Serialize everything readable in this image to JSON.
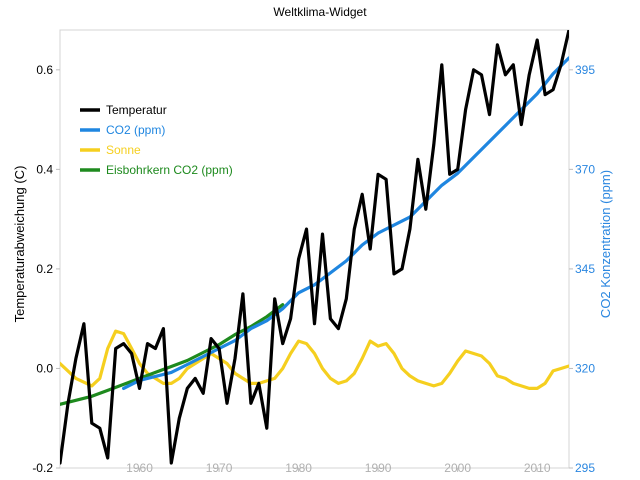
{
  "chart_data": {
    "type": "line",
    "title": "Weltklima-Widget",
    "ylabel_left": "Temperaturabweichung (C)",
    "ylabel_right": "CO2 Konzentration (ppm)",
    "xlim": [
      1950,
      2014
    ],
    "ylim_left": [
      -0.2,
      0.68
    ],
    "ylim_right": [
      295,
      405
    ],
    "x_ticks": [
      "1960",
      "1970",
      "1980",
      "1990",
      "2000",
      "2010"
    ],
    "y_left_ticks": [
      "-0.2",
      "0.0",
      "0.2",
      "0.4",
      "0.6"
    ],
    "y_right_ticks": [
      "295",
      "320",
      "345",
      "370",
      "395"
    ],
    "grid": false,
    "legend_position": "top-left",
    "colors": {
      "temperature": "#000000",
      "co2": "#1f86e0",
      "sun": "#f5cf1f",
      "icecore": "#1e8a1e",
      "right_axis": "#2b87e0",
      "x_axis_ticks": "#b0b0b0"
    },
    "series": [
      {
        "name": "Temperatur",
        "axis": "left",
        "x": [
          1950,
          1951,
          1952,
          1953,
          1954,
          1955,
          1956,
          1957,
          1958,
          1959,
          1960,
          1961,
          1962,
          1963,
          1964,
          1965,
          1966,
          1967,
          1968,
          1969,
          1970,
          1971,
          1972,
          1973,
          1974,
          1975,
          1976,
          1977,
          1978,
          1979,
          1980,
          1981,
          1982,
          1983,
          1984,
          1985,
          1986,
          1987,
          1988,
          1989,
          1990,
          1991,
          1992,
          1993,
          1994,
          1995,
          1996,
          1997,
          1998,
          1999,
          2000,
          2001,
          2002,
          2003,
          2004,
          2005,
          2006,
          2007,
          2008,
          2009,
          2010,
          2011,
          2012,
          2013,
          2014
        ],
        "values": [
          -0.19,
          -0.07,
          0.02,
          0.09,
          -0.11,
          -0.12,
          -0.18,
          0.04,
          0.05,
          0.03,
          -0.04,
          0.05,
          0.04,
          0.08,
          -0.19,
          -0.1,
          -0.04,
          -0.02,
          -0.05,
          0.06,
          0.04,
          -0.07,
          0.02,
          0.15,
          -0.07,
          -0.03,
          -0.12,
          0.14,
          0.05,
          0.1,
          0.22,
          0.28,
          0.09,
          0.27,
          0.1,
          0.08,
          0.14,
          0.28,
          0.35,
          0.24,
          0.39,
          0.38,
          0.19,
          0.2,
          0.28,
          0.42,
          0.32,
          0.45,
          0.61,
          0.39,
          0.4,
          0.52,
          0.6,
          0.59,
          0.51,
          0.65,
          0.59,
          0.61,
          0.49,
          0.59,
          0.66,
          0.55,
          0.56,
          0.61,
          0.68
        ]
      },
      {
        "name": "CO2 (ppm)",
        "axis": "right",
        "x": [
          1958,
          1960,
          1962,
          1964,
          1966,
          1968,
          1970,
          1972,
          1974,
          1976,
          1978,
          1980,
          1982,
          1984,
          1986,
          1988,
          1990,
          1992,
          1994,
          1996,
          1998,
          2000,
          2002,
          2004,
          2006,
          2008,
          2010,
          2012,
          2014
        ],
        "values": [
          315,
          317,
          318,
          319,
          321,
          323,
          325,
          327,
          330,
          332,
          335,
          339,
          341,
          344,
          347,
          351,
          354,
          356,
          358,
          362,
          366,
          369,
          373,
          377,
          381,
          385,
          389,
          394,
          398
        ]
      },
      {
        "name": "Sonne",
        "axis": "left",
        "x": [
          1950,
          1952,
          1954,
          1955,
          1956,
          1957,
          1958,
          1959,
          1960,
          1961,
          1962,
          1963,
          1964,
          1965,
          1966,
          1968,
          1969,
          1970,
          1971,
          1972,
          1973,
          1974,
          1975,
          1976,
          1977,
          1978,
          1979,
          1980,
          1981,
          1982,
          1983,
          1984,
          1985,
          1986,
          1987,
          1988,
          1989,
          1990,
          1991,
          1992,
          1993,
          1994,
          1995,
          1996,
          1997,
          1998,
          1999,
          2000,
          2001,
          2002,
          2003,
          2004,
          2005,
          2006,
          2007,
          2008,
          2009,
          2010,
          2011,
          2012,
          2013,
          2014
        ],
        "values": [
          0.01,
          -0.02,
          -0.035,
          -0.02,
          0.04,
          0.075,
          0.07,
          0.04,
          0.01,
          -0.01,
          -0.02,
          -0.03,
          -0.03,
          -0.02,
          0.0,
          0.02,
          0.03,
          0.02,
          0.01,
          -0.01,
          -0.02,
          -0.03,
          -0.03,
          -0.025,
          -0.02,
          0.0,
          0.03,
          0.055,
          0.05,
          0.03,
          0.0,
          -0.02,
          -0.03,
          -0.025,
          -0.01,
          0.02,
          0.055,
          0.045,
          0.05,
          0.03,
          0.0,
          -0.015,
          -0.025,
          -0.03,
          -0.035,
          -0.03,
          -0.01,
          0.015,
          0.035,
          0.03,
          0.025,
          0.01,
          -0.015,
          -0.02,
          -0.03,
          -0.035,
          -0.04,
          -0.04,
          -0.03,
          -0.005,
          0.0,
          0.005
        ]
      },
      {
        "name": "Eisbohrkern CO2 (ppm)",
        "axis": "right",
        "x": [
          1950,
          1952,
          1954,
          1956,
          1958,
          1960,
          1962,
          1964,
          1966,
          1968,
          1970,
          1972,
          1974,
          1976,
          1978
        ],
        "values": [
          311,
          312,
          313,
          314.5,
          316,
          317.5,
          319,
          320.5,
          322,
          324,
          326,
          328.5,
          330.5,
          333,
          336
        ]
      }
    ]
  }
}
